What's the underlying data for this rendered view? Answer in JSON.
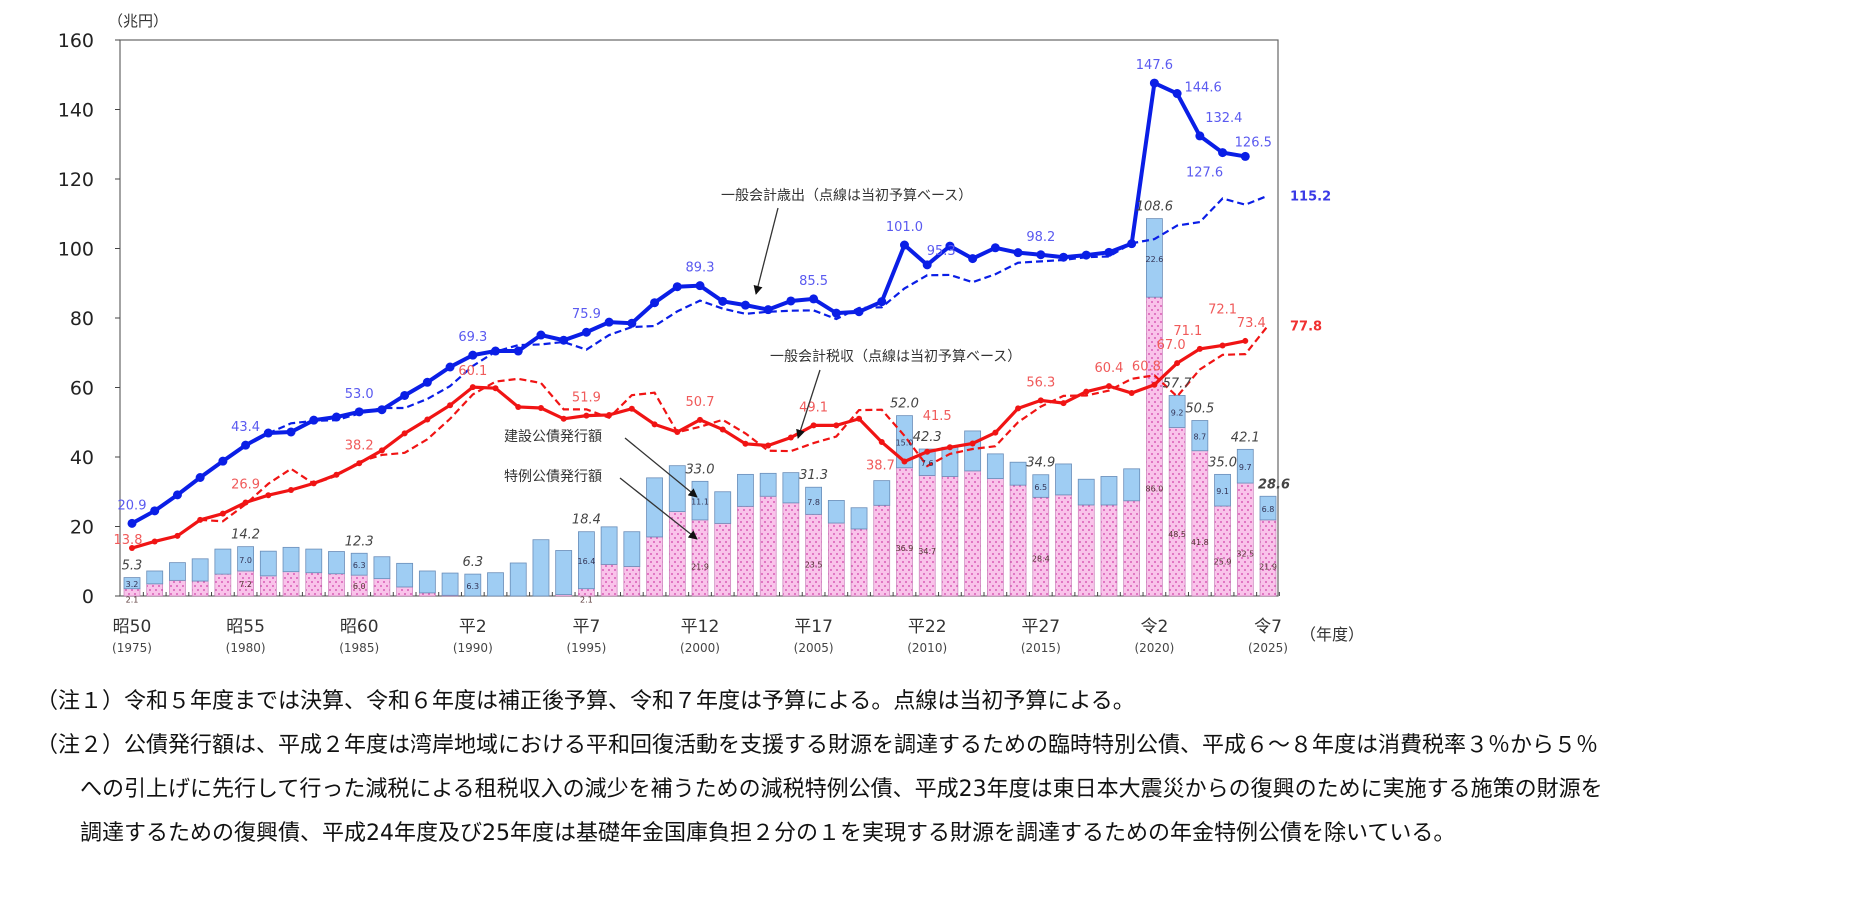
{
  "chart_data": {
    "type": "bar+line",
    "unit_label": "（兆円）",
    "xlabel": "（年度）",
    "ylim": [
      0,
      160
    ],
    "yticks": [
      0,
      20,
      40,
      60,
      80,
      100,
      120,
      140,
      160
    ],
    "years": [
      1975,
      1976,
      1977,
      1978,
      1979,
      1980,
      1981,
      1982,
      1983,
      1984,
      1985,
      1986,
      1987,
      1988,
      1989,
      1990,
      1991,
      1992,
      1993,
      1994,
      1995,
      1996,
      1997,
      1998,
      1999,
      2000,
      2001,
      2002,
      2003,
      2004,
      2005,
      2006,
      2007,
      2008,
      2009,
      2010,
      2011,
      2012,
      2013,
      2014,
      2015,
      2016,
      2017,
      2018,
      2019,
      2020,
      2021,
      2022,
      2023,
      2024,
      2025
    ],
    "xticks": [
      {
        "year": 1975,
        "era": "昭50",
        "label": "(1975)"
      },
      {
        "year": 1980,
        "era": "昭55",
        "label": "(1980)"
      },
      {
        "year": 1985,
        "era": "昭60",
        "label": "(1985)"
      },
      {
        "year": 1990,
        "era": "平2",
        "label": "(1990)"
      },
      {
        "year": 1995,
        "era": "平7",
        "label": "(1995)"
      },
      {
        "year": 2000,
        "era": "平12",
        "label": "(2000)"
      },
      {
        "year": 2005,
        "era": "平17",
        "label": "(2005)"
      },
      {
        "year": 2010,
        "era": "平22",
        "label": "(2010)"
      },
      {
        "year": 2015,
        "era": "平27",
        "label": "(2015)"
      },
      {
        "year": 2020,
        "era": "令2",
        "label": "(2020)"
      },
      {
        "year": 2025,
        "era": "令7",
        "label": "(2025)"
      }
    ],
    "series": [
      {
        "name": "一般会計歳出",
        "kind": "line",
        "color": "#0a1ee6",
        "values": [
          20.9,
          24.5,
          29.1,
          34.1,
          38.8,
          43.4,
          46.9,
          47.2,
          50.6,
          51.5,
          53.0,
          53.6,
          57.7,
          61.5,
          65.9,
          69.3,
          70.5,
          70.5,
          75.1,
          73.6,
          75.9,
          78.8,
          78.5,
          84.4,
          89.0,
          89.3,
          84.8,
          83.7,
          82.4,
          84.9,
          85.5,
          81.4,
          81.8,
          84.7,
          101.0,
          95.3,
          100.7,
          97.1,
          100.2,
          98.8,
          98.2,
          97.5,
          98.1,
          98.9,
          101.4,
          147.6,
          144.6,
          132.4,
          127.6,
          126.5,
          null
        ]
      },
      {
        "name": "一般会計歳出（当初予算）",
        "kind": "dashed-line",
        "color": "#0a1ee6",
        "values": [
          null,
          null,
          null,
          null,
          null,
          null,
          46.8,
          49.7,
          50.4,
          50.6,
          52.5,
          54.1,
          54.1,
          56.7,
          60.4,
          66.2,
          70.3,
          72.2,
          72.4,
          73.1,
          70.9,
          75.1,
          77.4,
          77.7,
          81.9,
          85.0,
          82.7,
          81.2,
          81.8,
          82.1,
          82.2,
          79.7,
          82.9,
          83.1,
          88.5,
          92.3,
          92.4,
          90.3,
          92.6,
          95.9,
          96.3,
          96.7,
          97.5,
          97.7,
          101.5,
          102.7,
          106.6,
          107.6,
          114.4,
          112.6,
          115.2
        ]
      },
      {
        "name": "一般会計税収",
        "kind": "line",
        "color": "#f01414",
        "values": [
          13.8,
          15.7,
          17.3,
          21.9,
          23.7,
          26.9,
          29.0,
          30.5,
          32.4,
          34.9,
          38.2,
          41.9,
          46.8,
          50.8,
          54.9,
          60.1,
          59.8,
          54.4,
          54.1,
          51.0,
          51.9,
          52.1,
          53.9,
          49.4,
          47.2,
          50.7,
          47.9,
          43.8,
          43.3,
          45.6,
          49.1,
          49.1,
          51.0,
          44.3,
          38.7,
          41.5,
          42.8,
          43.9,
          47.0,
          54.0,
          56.3,
          55.5,
          58.8,
          60.4,
          58.4,
          60.8,
          67.0,
          71.1,
          72.1,
          73.4,
          null
        ]
      },
      {
        "name": "一般会計税収（当初予算）",
        "kind": "dashed-line",
        "color": "#f01414",
        "values": [
          null,
          null,
          null,
          21.9,
          21.5,
          26.4,
          32.3,
          36.6,
          32.3,
          34.6,
          38.6,
          40.6,
          41.2,
          45.1,
          51.0,
          58.0,
          61.7,
          62.5,
          61.3,
          53.7,
          53.7,
          51.3,
          57.8,
          58.5,
          47.1,
          48.7,
          50.7,
          46.8,
          41.8,
          41.7,
          44.0,
          45.9,
          53.5,
          53.6,
          46.1,
          37.4,
          40.9,
          42.3,
          43.1,
          50.0,
          54.5,
          57.6,
          57.7,
          59.1,
          62.5,
          63.5,
          57.4,
          65.2,
          69.4,
          69.6,
          77.8
        ]
      },
      {
        "name": "建設公債発行額",
        "kind": "stacked-bar",
        "color": "#9fcdf3",
        "values": [
          3.2,
          3.7,
          5.1,
          6.4,
          7.2,
          7.0,
          7.1,
          7.0,
          6.8,
          6.4,
          6.3,
          6.3,
          6.8,
          6.3,
          6.4,
          6.3,
          6.7,
          9.5,
          16.2,
          12.7,
          16.4,
          10.8,
          10.0,
          17.0,
          13.2,
          11.1,
          9.1,
          9.2,
          6.6,
          8.7,
          7.8,
          6.5,
          6.1,
          7.1,
          15.0,
          7.6,
          8.4,
          11.5,
          7.1,
          6.6,
          6.5,
          8.9,
          7.4,
          8.2,
          9.2,
          22.6,
          9.2,
          8.7,
          9.1,
          9.7,
          6.8
        ]
      },
      {
        "name": "特例公債発行額",
        "kind": "stacked-bar",
        "color": "#f9c3ea",
        "values": [
          2.1,
          3.5,
          4.5,
          4.3,
          6.3,
          7.2,
          5.8,
          7.0,
          6.7,
          6.4,
          6.0,
          5.0,
          2.6,
          0.9,
          0.2,
          0.0,
          0,
          0,
          0,
          0.4,
          2.1,
          9.1,
          8.5,
          17.0,
          24.3,
          21.9,
          20.9,
          25.8,
          28.7,
          26.8,
          23.5,
          21.0,
          19.3,
          26.1,
          36.9,
          34.7,
          34.4,
          36.0,
          33.8,
          31.9,
          28.4,
          29.1,
          26.2,
          26.2,
          27.4,
          86.0,
          48.5,
          41.8,
          25.9,
          32.5,
          21.9
        ]
      }
    ],
    "line_labels": {
      "expenditure": [
        {
          "year": 1975,
          "text": "20.9"
        },
        {
          "year": 1980,
          "text": "43.4"
        },
        {
          "year": 1985,
          "text": "53.0"
        },
        {
          "year": 1990,
          "text": "69.3"
        },
        {
          "year": 1995,
          "text": "75.9"
        },
        {
          "year": 2000,
          "text": "89.3"
        },
        {
          "year": 2005,
          "text": "85.5"
        },
        {
          "year": 2009,
          "text": "101.0"
        },
        {
          "year": 2010,
          "text": "95.3"
        },
        {
          "year": 2015,
          "text": "98.2"
        },
        {
          "year": 2020,
          "text": "147.6"
        },
        {
          "year": 2021,
          "text": "144.6"
        },
        {
          "year": 2022,
          "text": "132.4"
        },
        {
          "year": 2023,
          "text": "127.6"
        },
        {
          "year": 2024,
          "text": "126.5"
        }
      ],
      "expenditure_budget_end": "115.2",
      "tax": [
        {
          "year": 1975,
          "text": "13.8"
        },
        {
          "year": 1980,
          "text": "26.9"
        },
        {
          "year": 1985,
          "text": "38.2"
        },
        {
          "year": 1990,
          "text": "60.1"
        },
        {
          "year": 1995,
          "text": "51.9"
        },
        {
          "year": 2000,
          "text": "50.7"
        },
        {
          "year": 2005,
          "text": "49.1"
        },
        {
          "year": 2009,
          "text": "38.7"
        },
        {
          "year": 2010,
          "text": "41.5"
        },
        {
          "year": 2015,
          "text": "56.3"
        },
        {
          "year": 2018,
          "text": "60.4"
        },
        {
          "year": 2020,
          "text": "60.8"
        },
        {
          "year": 2021,
          "text": "67.0"
        },
        {
          "year": 2022,
          "text": "71.1"
        },
        {
          "year": 2023,
          "text": "72.1"
        },
        {
          "year": 2024,
          "text": "73.4"
        }
      ],
      "tax_budget_end": "77.8"
    },
    "bar_labels": [
      {
        "year": 1975,
        "total": "5.3",
        "construction": "3.2",
        "special": "2.1"
      },
      {
        "year": 1980,
        "total": "14.2",
        "construction": "7.0",
        "special": "7.2"
      },
      {
        "year": 1985,
        "total": "12.3",
        "construction": "6.3",
        "special": "6.0"
      },
      {
        "year": 1990,
        "total": "6.3",
        "construction": "6.3",
        "special": null
      },
      {
        "year": 1995,
        "total": "18.4",
        "construction": "16.4",
        "special": "2.1"
      },
      {
        "year": 2000,
        "total": "33.0",
        "construction": "11.1",
        "special": "21.9"
      },
      {
        "year": 2005,
        "total": "31.3",
        "construction": "7.8",
        "special": "23.5"
      },
      {
        "year": 2009,
        "total": "52.0",
        "construction": "15.0",
        "special": "36.9"
      },
      {
        "year": 2010,
        "total": "42.3",
        "construction": "7.6",
        "special": "34.7"
      },
      {
        "year": 2015,
        "total": "34.9",
        "construction": "6.5",
        "special": "28.4"
      },
      {
        "year": 2020,
        "total": "108.6",
        "construction": "22.6",
        "special": "86.0"
      },
      {
        "year": 2021,
        "total": "57.7",
        "construction": "9.2",
        "special": "48.5"
      },
      {
        "year": 2022,
        "total": "50.5",
        "construction": "8.7",
        "special": "41.8"
      },
      {
        "year": 2023,
        "total": "35.0",
        "construction": "9.1",
        "special": "25.9"
      },
      {
        "year": 2024,
        "total": "42.1",
        "construction": "9.7",
        "special": "32.5"
      },
      {
        "year": 2025,
        "total": "28.6",
        "construction": "6.8",
        "special": "21.9"
      }
    ],
    "annotations": {
      "expenditure": "一般会計歳出（点線は当初予算ベース）",
      "tax": "一般会計税収（点線は当初予算ベース）",
      "construction": "建設公債発行額",
      "special": "特例公債発行額"
    },
    "grid": false,
    "legend": "none"
  },
  "notes": {
    "note1_marker": "（注１）",
    "note1": "令和５年度までは決算、令和６年度は補正後予算、令和７年度は予算による。点線は当初予算による。",
    "note2_marker": "（注２）",
    "note2_line1": "公債発行額は、平成２年度は湾岸地域における平和回復活動を支援する財源を調達するための臨時特別公債、平成６～８年度は消費税率３％から５％",
    "note2_line2": "への引上げに先行して行った減税による租税収入の減少を補うための減税特例公債、平成23年度は東日本大震災からの復興のために実施する施策の財源を",
    "note2_line3": "調達するための復興債、平成24年度及び25年度は基礎年金国庫負担２分の１を実現する財源を調達するための年金特例公債を除いている。"
  }
}
